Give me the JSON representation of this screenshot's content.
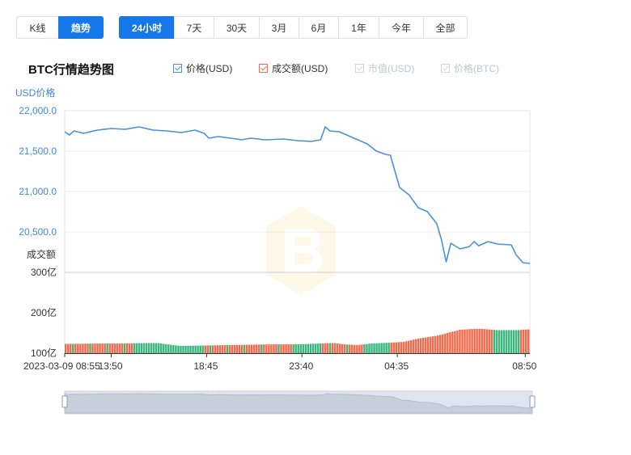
{
  "view_tabs": [
    {
      "label": "K线",
      "active": false
    },
    {
      "label": "趋势",
      "active": true
    }
  ],
  "range_tabs": [
    {
      "label": "24小时",
      "active": true
    },
    {
      "label": "7天",
      "active": false
    },
    {
      "label": "30天",
      "active": false
    },
    {
      "label": "3月",
      "active": false
    },
    {
      "label": "6月",
      "active": false
    },
    {
      "label": "1年",
      "active": false
    },
    {
      "label": "今年",
      "active": false
    },
    {
      "label": "全部",
      "active": false
    }
  ],
  "legend": [
    {
      "label": "价格(USD)",
      "checked": true,
      "color": "#4a90d9"
    },
    {
      "label": "成交额(USD)",
      "checked": true,
      "color": "#f06a4e"
    },
    {
      "label": "市值(USD)",
      "checked": false,
      "color": "#cccccc"
    },
    {
      "label": "价格(BTC)",
      "checked": false,
      "color": "#cccccc"
    }
  ],
  "chart_data": {
    "type": "line",
    "title": "BTC行情趋势图",
    "ylabel": "USD价格",
    "volume_label": "成交额",
    "x_ticks": [
      "2023-03-09 08:55",
      "13:50",
      "18:45",
      "23:40",
      "04:35",
      "08:50"
    ],
    "y_ticks": [
      "22,000.0",
      "21,500.0",
      "21,000.0",
      "20,500.0"
    ],
    "ylim": [
      20000,
      22000
    ],
    "volume_ticks": [
      "300亿",
      "200亿",
      "100亿"
    ],
    "volume_ylim": [
      100,
      300
    ],
    "price_line_color": "#4a90d9",
    "volume_up_color": "#3cb57e",
    "volume_down_color": "#f06a4e",
    "price_series": [
      [
        0,
        21740
      ],
      [
        0.01,
        21700
      ],
      [
        0.02,
        21750
      ],
      [
        0.04,
        21720
      ],
      [
        0.07,
        21760
      ],
      [
        0.1,
        21780
      ],
      [
        0.13,
        21770
      ],
      [
        0.16,
        21800
      ],
      [
        0.19,
        21760
      ],
      [
        0.22,
        21750
      ],
      [
        0.25,
        21730
      ],
      [
        0.28,
        21760
      ],
      [
        0.3,
        21720
      ],
      [
        0.31,
        21660
      ],
      [
        0.33,
        21680
      ],
      [
        0.37,
        21650
      ],
      [
        0.38,
        21640
      ],
      [
        0.4,
        21660
      ],
      [
        0.43,
        21640
      ],
      [
        0.47,
        21650
      ],
      [
        0.5,
        21630
      ],
      [
        0.53,
        21620
      ],
      [
        0.55,
        21640
      ],
      [
        0.56,
        21800
      ],
      [
        0.57,
        21750
      ],
      [
        0.59,
        21740
      ],
      [
        0.61,
        21690
      ],
      [
        0.63,
        21640
      ],
      [
        0.65,
        21590
      ],
      [
        0.67,
        21500
      ],
      [
        0.69,
        21460
      ],
      [
        0.7,
        21450
      ],
      [
        0.72,
        21050
      ],
      [
        0.74,
        20960
      ],
      [
        0.75,
        20880
      ],
      [
        0.76,
        20800
      ],
      [
        0.78,
        20750
      ],
      [
        0.8,
        20600
      ],
      [
        0.81,
        20400
      ],
      [
        0.82,
        20130
      ],
      [
        0.83,
        20360
      ],
      [
        0.85,
        20290
      ],
      [
        0.87,
        20320
      ],
      [
        0.88,
        20380
      ],
      [
        0.89,
        20330
      ],
      [
        0.91,
        20380
      ],
      [
        0.93,
        20350
      ],
      [
        0.96,
        20340
      ],
      [
        0.97,
        20220
      ],
      [
        0.985,
        20120
      ],
      [
        1.0,
        20110
      ]
    ],
    "volume_series": [
      [
        0,
        123
      ],
      [
        0.1,
        124
      ],
      [
        0.2,
        125
      ],
      [
        0.22,
        122
      ],
      [
        0.25,
        118
      ],
      [
        0.3,
        119
      ],
      [
        0.35,
        120
      ],
      [
        0.45,
        122
      ],
      [
        0.5,
        122
      ],
      [
        0.53,
        123
      ],
      [
        0.55,
        124
      ],
      [
        0.58,
        125
      ],
      [
        0.6,
        122
      ],
      [
        0.63,
        120
      ],
      [
        0.66,
        124
      ],
      [
        0.7,
        126
      ],
      [
        0.73,
        128
      ],
      [
        0.76,
        136
      ],
      [
        0.8,
        143
      ],
      [
        0.83,
        152
      ],
      [
        0.85,
        158
      ],
      [
        0.88,
        160
      ],
      [
        0.9,
        160
      ],
      [
        0.93,
        157
      ],
      [
        0.97,
        157
      ],
      [
        1.0,
        159
      ]
    ],
    "volume_up_ranges": [
      [
        0.15,
        0.3
      ],
      [
        0.49,
        0.55
      ],
      [
        0.65,
        0.7
      ],
      [
        0.92,
        0.98
      ]
    ]
  }
}
